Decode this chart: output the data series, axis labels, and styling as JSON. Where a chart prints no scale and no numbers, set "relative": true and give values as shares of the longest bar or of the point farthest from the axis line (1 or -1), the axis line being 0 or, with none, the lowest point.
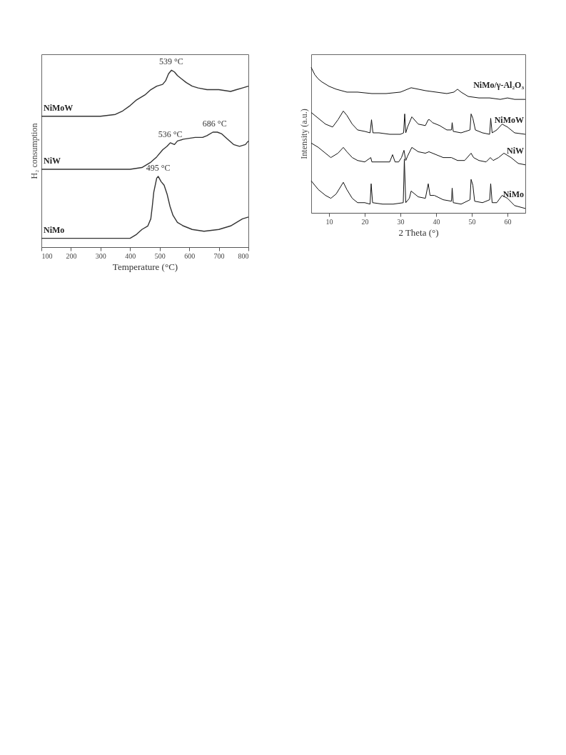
{
  "chart_data": [
    {
      "type": "line",
      "relative": true,
      "xlabel": "Temperature (°C)",
      "ylabel": "H₂ consumption",
      "xlim": [
        100,
        800
      ],
      "xticks": [
        100,
        200,
        300,
        400,
        500,
        600,
        700,
        800
      ],
      "marker": "none",
      "line_style": "solid",
      "grid": false,
      "legend": false,
      "annotations": [
        {
          "text": "539 °C",
          "x": 539,
          "y": 1.0
        },
        {
          "text": "536 °C",
          "x": 536,
          "y": 0.59
        },
        {
          "text": "686 °C",
          "x": 686,
          "y": 0.65
        },
        {
          "text": "495 °C",
          "x": 495,
          "y": 0.4
        }
      ],
      "series": [
        {
          "name": "NiMoW",
          "color": "#333333",
          "x": [
            100,
            300,
            350,
            375,
            400,
            420,
            440,
            450,
            470,
            490,
            510,
            520,
            530,
            540,
            550,
            560,
            575,
            590,
            610,
            630,
            660,
            700,
            740,
            760,
            780,
            800
          ],
          "values": [
            0.74,
            0.74,
            0.75,
            0.77,
            0.8,
            0.83,
            0.85,
            0.86,
            0.89,
            0.91,
            0.92,
            0.94,
            0.98,
            1.0,
            0.99,
            0.97,
            0.95,
            0.93,
            0.91,
            0.9,
            0.89,
            0.89,
            0.88,
            0.89,
            0.9,
            0.91
          ]
        },
        {
          "name": "NiW",
          "color": "#333333",
          "x": [
            100,
            350,
            400,
            440,
            470,
            490,
            510,
            525,
            536,
            550,
            560,
            580,
            620,
            645,
            660,
            680,
            695,
            710,
            730,
            750,
            770,
            790,
            800
          ],
          "values": [
            0.44,
            0.44,
            0.44,
            0.45,
            0.48,
            0.51,
            0.55,
            0.57,
            0.59,
            0.58,
            0.6,
            0.61,
            0.62,
            0.62,
            0.63,
            0.65,
            0.65,
            0.64,
            0.61,
            0.58,
            0.57,
            0.58,
            0.6
          ]
        },
        {
          "name": "NiMo",
          "color": "#333333",
          "x": [
            100,
            350,
            400,
            420,
            440,
            460,
            470,
            475,
            480,
            490,
            495,
            505,
            515,
            525,
            535,
            545,
            560,
            580,
            610,
            650,
            700,
            740,
            760,
            780,
            800
          ],
          "values": [
            0.05,
            0.05,
            0.05,
            0.07,
            0.1,
            0.12,
            0.16,
            0.23,
            0.31,
            0.39,
            0.4,
            0.37,
            0.35,
            0.3,
            0.23,
            0.18,
            0.14,
            0.12,
            0.1,
            0.09,
            0.1,
            0.12,
            0.14,
            0.16,
            0.17
          ]
        }
      ]
    },
    {
      "type": "line",
      "relative": true,
      "xlabel": "2 Theta (°)",
      "ylabel": "Intensity (a.u.)",
      "xlim": [
        5,
        65
      ],
      "xticks": [
        10,
        20,
        30,
        40,
        50,
        60
      ],
      "marker": "none",
      "line_style": "solid",
      "grid": false,
      "legend": false,
      "series": [
        {
          "name": "NiMo/γ-Al₂O₃",
          "color": "#111111",
          "x": [
            5,
            6,
            7,
            8,
            10,
            12,
            15,
            18,
            22,
            26,
            30,
            33,
            35,
            37,
            40,
            43,
            45,
            46,
            47,
            49,
            52,
            55,
            58,
            60,
            62,
            65
          ],
          "values": [
            1.0,
            0.95,
            0.92,
            0.9,
            0.87,
            0.85,
            0.83,
            0.83,
            0.82,
            0.82,
            0.83,
            0.86,
            0.85,
            0.84,
            0.83,
            0.82,
            0.83,
            0.85,
            0.83,
            0.8,
            0.79,
            0.79,
            0.78,
            0.79,
            0.78,
            0.78
          ]
        },
        {
          "name": "NiMoW",
          "color": "#111111",
          "x": [
            5,
            7,
            9,
            11,
            12.5,
            14,
            15,
            16.5,
            18,
            20,
            21.5,
            21.9,
            22.3,
            24,
            27,
            30,
            30.9,
            31.2,
            31.5,
            32,
            33.2,
            35,
            37,
            37.8,
            38.2,
            39,
            41,
            43,
            44.3,
            44.5,
            44.8,
            47,
            49.5,
            49.8,
            50.3,
            51,
            53,
            55,
            55.3,
            55.7,
            57,
            58.5,
            60,
            62,
            65
          ],
          "values": [
            0.69,
            0.65,
            0.61,
            0.59,
            0.64,
            0.7,
            0.67,
            0.61,
            0.57,
            0.56,
            0.55,
            0.64,
            0.55,
            0.55,
            0.54,
            0.54,
            0.55,
            0.68,
            0.55,
            0.59,
            0.66,
            0.61,
            0.6,
            0.64,
            0.64,
            0.62,
            0.6,
            0.57,
            0.57,
            0.62,
            0.56,
            0.55,
            0.57,
            0.68,
            0.65,
            0.57,
            0.55,
            0.54,
            0.65,
            0.55,
            0.57,
            0.61,
            0.59,
            0.55,
            0.54
          ]
        },
        {
          "name": "NiW",
          "color": "#111111",
          "x": [
            5,
            7,
            9,
            10.5,
            12.5,
            14,
            15,
            16.5,
            18,
            20,
            21.7,
            22,
            24,
            27,
            27.8,
            28.5,
            29.5,
            30.3,
            31,
            31.5,
            32,
            33.2,
            35,
            37,
            38,
            40,
            42,
            44.3,
            46,
            48,
            49.8,
            50.5,
            52,
            54,
            55.2,
            56,
            57.5,
            59,
            61,
            63,
            65
          ],
          "values": [
            0.48,
            0.45,
            0.41,
            0.38,
            0.41,
            0.45,
            0.42,
            0.38,
            0.36,
            0.35,
            0.38,
            0.35,
            0.35,
            0.35,
            0.4,
            0.35,
            0.35,
            0.38,
            0.43,
            0.36,
            0.39,
            0.45,
            0.42,
            0.41,
            0.42,
            0.4,
            0.38,
            0.38,
            0.36,
            0.36,
            0.41,
            0.38,
            0.36,
            0.35,
            0.38,
            0.36,
            0.38,
            0.41,
            0.38,
            0.34,
            0.33
          ]
        },
        {
          "name": "NiMo",
          "color": "#111111",
          "x": [
            5,
            7,
            9,
            10.5,
            12,
            14,
            15,
            16.5,
            18,
            20,
            21.5,
            21.8,
            22.2,
            25,
            28,
            30.8,
            31.1,
            31.5,
            32.5,
            33,
            35,
            37,
            37.8,
            38.3,
            39.5,
            42,
            44.3,
            44.5,
            44.8,
            47,
            49.5,
            49.8,
            50.3,
            50.8,
            53,
            55,
            55.3,
            55.7,
            57,
            58.5,
            60,
            62,
            65
          ],
          "values": [
            0.22,
            0.16,
            0.12,
            0.1,
            0.13,
            0.21,
            0.16,
            0.1,
            0.07,
            0.07,
            0.06,
            0.2,
            0.07,
            0.06,
            0.06,
            0.07,
            0.37,
            0.07,
            0.1,
            0.15,
            0.11,
            0.1,
            0.2,
            0.12,
            0.12,
            0.09,
            0.08,
            0.17,
            0.07,
            0.06,
            0.09,
            0.23,
            0.19,
            0.08,
            0.07,
            0.09,
            0.2,
            0.07,
            0.07,
            0.12,
            0.1,
            0.05,
            0.03
          ]
        }
      ]
    }
  ]
}
